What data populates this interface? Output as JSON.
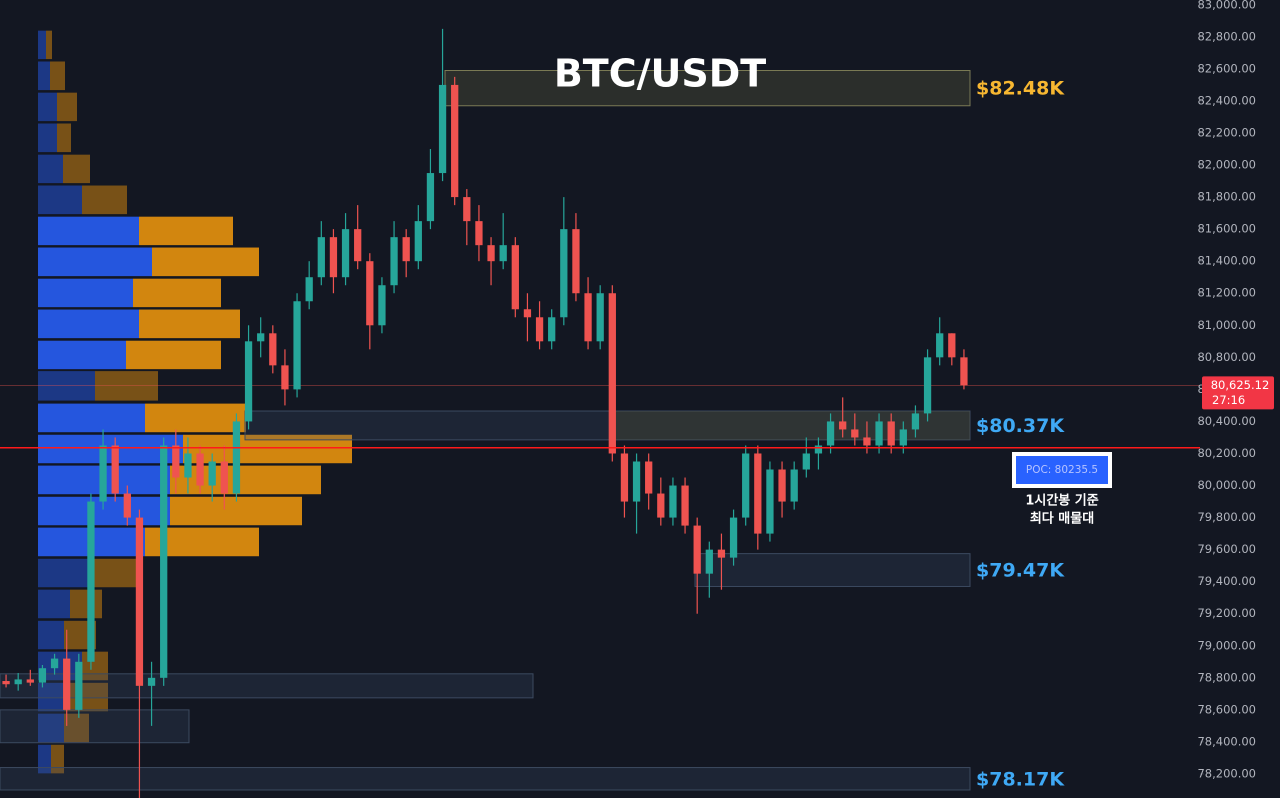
{
  "chart_data": {
    "type": "candlestick",
    "title": "BTC/USDT",
    "colors": {
      "up": "#26a69a",
      "down": "#ef5350",
      "buy": "#2962ff",
      "sell": "#f59a0c"
    },
    "ylim": [
      78050,
      83030
    ],
    "grid": false,
    "yticks": [
      {
        "value": 78200,
        "label": "78,200.00"
      },
      {
        "value": 78400,
        "label": "78,400.00"
      },
      {
        "value": 78600,
        "label": "78,600.00"
      },
      {
        "value": 78800,
        "label": "78,800.00"
      },
      {
        "value": 79000,
        "label": "79,000.00"
      },
      {
        "value": 79200,
        "label": "79,200.00"
      },
      {
        "value": 79400,
        "label": "79,400.00"
      },
      {
        "value": 79600,
        "label": "79,600.00"
      },
      {
        "value": 79800,
        "label": "79,800.00"
      },
      {
        "value": 80000,
        "label": "80,000.00"
      },
      {
        "value": 80200,
        "label": "80,200.00"
      },
      {
        "value": 80400,
        "label": "80,400.00"
      },
      {
        "value": 80600,
        "label": "80,600.00"
      },
      {
        "value": 80800,
        "label": "80,800.00"
      },
      {
        "value": 81000,
        "label": "81,000.00"
      },
      {
        "value": 81200,
        "label": "81,200.00"
      },
      {
        "value": 81400,
        "label": "81,400.00"
      },
      {
        "value": 81600,
        "label": "81,600.00"
      },
      {
        "value": 81800,
        "label": "81,800.00"
      },
      {
        "value": 82000,
        "label": "82,000.00"
      },
      {
        "value": 82200,
        "label": "82,200.00"
      },
      {
        "value": 82400,
        "label": "82,400.00"
      },
      {
        "value": 82600,
        "label": "82,600.00"
      },
      {
        "value": 82800,
        "label": "82,800.00"
      },
      {
        "value": 83000,
        "label": "83,000.00"
      }
    ],
    "candles": [
      [
        78780,
        78820,
        78740,
        78760
      ],
      [
        78760,
        78830,
        78720,
        78790
      ],
      [
        78790,
        78850,
        78750,
        78770
      ],
      [
        78770,
        78880,
        78740,
        78860
      ],
      [
        78860,
        78950,
        78820,
        78920
      ],
      [
        78920,
        79100,
        78500,
        78600
      ],
      [
        78600,
        78950,
        78550,
        78900
      ],
      [
        78900,
        79950,
        78850,
        79900
      ],
      [
        79900,
        80350,
        79850,
        80250
      ],
      [
        80250,
        80300,
        79900,
        79950
      ],
      [
        79950,
        80000,
        79750,
        79800
      ],
      [
        79800,
        79850,
        77900,
        78750
      ],
      [
        78750,
        78900,
        78500,
        78800
      ],
      [
        78800,
        80300,
        78750,
        80250
      ],
      [
        80250,
        80350,
        79950,
        80050
      ],
      [
        80050,
        80300,
        79950,
        80200
      ],
      [
        80200,
        80250,
        79950,
        80000
      ],
      [
        80000,
        80200,
        79900,
        80150
      ],
      [
        80150,
        80250,
        79850,
        79950
      ],
      [
        79950,
        80450,
        79900,
        80400
      ],
      [
        80400,
        81000,
        80350,
        80900
      ],
      [
        80900,
        81050,
        80800,
        80950
      ],
      [
        80950,
        81000,
        80700,
        80750
      ],
      [
        80750,
        80850,
        80500,
        80600
      ],
      [
        80600,
        81200,
        80550,
        81150
      ],
      [
        81150,
        81400,
        81100,
        81300
      ],
      [
        81300,
        81650,
        81250,
        81550
      ],
      [
        81550,
        81600,
        81200,
        81300
      ],
      [
        81300,
        81700,
        81250,
        81600
      ],
      [
        81600,
        81750,
        81350,
        81400
      ],
      [
        81400,
        81450,
        80850,
        81000
      ],
      [
        81000,
        81300,
        80950,
        81250
      ],
      [
        81250,
        81650,
        81200,
        81550
      ],
      [
        81550,
        81600,
        81300,
        81400
      ],
      [
        81400,
        81750,
        81350,
        81650
      ],
      [
        81650,
        82100,
        81600,
        81950
      ],
      [
        81950,
        82850,
        81900,
        82500
      ],
      [
        82500,
        82550,
        81750,
        81800
      ],
      [
        81800,
        81850,
        81500,
        81650
      ],
      [
        81650,
        81750,
        81400,
        81500
      ],
      [
        81500,
        81550,
        81250,
        81400
      ],
      [
        81400,
        81700,
        81350,
        81500
      ],
      [
        81500,
        81550,
        81050,
        81100
      ],
      [
        81100,
        81200,
        80900,
        81050
      ],
      [
        81050,
        81150,
        80850,
        80900
      ],
      [
        80900,
        81100,
        80850,
        81050
      ],
      [
        81050,
        81800,
        81000,
        81600
      ],
      [
        81600,
        81700,
        81150,
        81200
      ],
      [
        81200,
        81300,
        80850,
        80900
      ],
      [
        80900,
        81250,
        80850,
        81200
      ],
      [
        81200,
        81250,
        80150,
        80200
      ],
      [
        80200,
        80250,
        79800,
        79900
      ],
      [
        79900,
        80200,
        79700,
        80150
      ],
      [
        80150,
        80200,
        79850,
        79950
      ],
      [
        79950,
        80050,
        79750,
        79800
      ],
      [
        79800,
        80050,
        79750,
        80000
      ],
      [
        80000,
        80050,
        79700,
        79750
      ],
      [
        79750,
        79800,
        79200,
        79450
      ],
      [
        79450,
        79650,
        79300,
        79600
      ],
      [
        79600,
        79700,
        79350,
        79550
      ],
      [
        79550,
        79850,
        79500,
        79800
      ],
      [
        79800,
        80250,
        79750,
        80200
      ],
      [
        80200,
        80250,
        79600,
        79700
      ],
      [
        79700,
        80150,
        79650,
        80100
      ],
      [
        80100,
        80150,
        79800,
        79900
      ],
      [
        79900,
        80150,
        79850,
        80100
      ],
      [
        80100,
        80300,
        80050,
        80200
      ],
      [
        80200,
        80300,
        80100,
        80250
      ],
      [
        80250,
        80450,
        80200,
        80400
      ],
      [
        80400,
        80550,
        80300,
        80350
      ],
      [
        80350,
        80450,
        80250,
        80300
      ],
      [
        80300,
        80400,
        80200,
        80250
      ],
      [
        80250,
        80450,
        80200,
        80400
      ],
      [
        80400,
        80450,
        80200,
        80250
      ],
      [
        80250,
        80400,
        80200,
        80350
      ],
      [
        80350,
        80500,
        80300,
        80450
      ],
      [
        80450,
        80850,
        80400,
        80800
      ],
      [
        80800,
        81050,
        80750,
        80950
      ],
      [
        80950,
        80950,
        80750,
        80800
      ],
      [
        80800,
        80850,
        80600,
        80625.12
      ]
    ],
    "volume_profile": {
      "prices": [
        82750,
        82557,
        82363,
        82170,
        81976,
        81783,
        81589,
        81396,
        81202,
        81009,
        80815,
        80622,
        80422,
        80228,
        80035,
        79841,
        79648,
        79454,
        79261,
        79067,
        78874,
        78680,
        78487,
        78293
      ],
      "buy": [
        8,
        12,
        19,
        19,
        25,
        44,
        101,
        114,
        95,
        101,
        88,
        57,
        107,
        145,
        132,
        132,
        107,
        51,
        32,
        26,
        44,
        26,
        26,
        13
      ],
      "sell": [
        6,
        15,
        20,
        14,
        27,
        45,
        94,
        107,
        88,
        101,
        95,
        63,
        101,
        169,
        151,
        132,
        114,
        50,
        32,
        32,
        26,
        44,
        25,
        13
      ]
    },
    "zones": [
      {
        "low": 82370,
        "high": 82590,
        "label": "$82.48K",
        "color": "#f7b731"
      },
      {
        "low": 80285,
        "high": 80465,
        "label": "$80.37K",
        "color": "#3fa9f5"
      },
      {
        "low": 79370,
        "high": 79575,
        "label": "$79.47K",
        "color": "#3fa9f5"
      },
      {
        "low": 78100,
        "high": 78240,
        "label": "$78.17K",
        "color": "#3fa9f5"
      },
      {
        "low": 78675,
        "high": 78825
      },
      {
        "low": 78395,
        "high": 78600
      }
    ],
    "poc": {
      "value": 80235.5,
      "label": "POC: 80235.5",
      "note": [
        "1시간봉 기준",
        "최다 매물대"
      ]
    },
    "last": {
      "value": 80625.12,
      "label": "80,625.12",
      "countdown": "27:16"
    }
  }
}
